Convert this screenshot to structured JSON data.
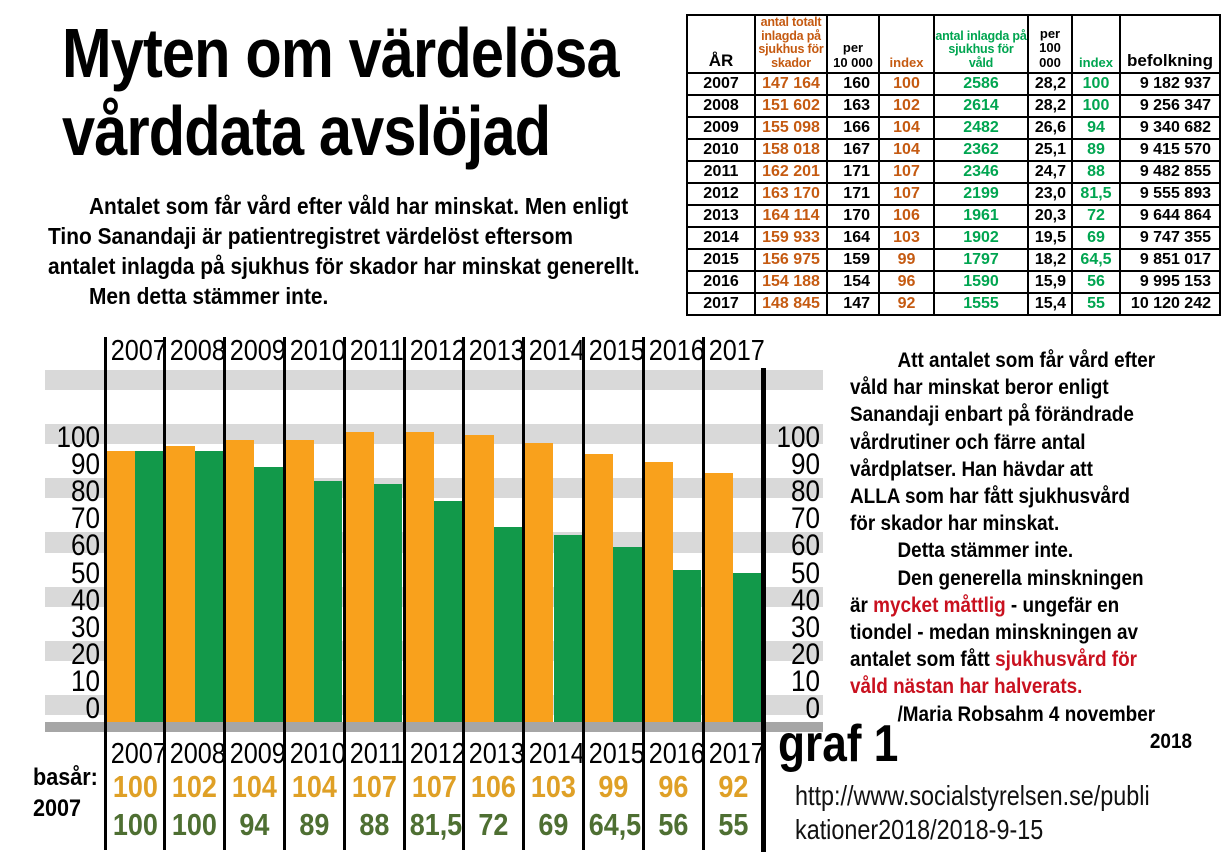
{
  "title": {
    "line1": "Myten om värdelösa",
    "line2": "vårddata avslöjad"
  },
  "intro": {
    "lines": [
      {
        "text": "Antalet som får vård efter våld har minskat. Men enligt",
        "indent": true
      },
      {
        "text": "Tino Sanandaji är patientregistret värdelöst eftersom",
        "indent": false
      },
      {
        "text": "antalet inlagda på sjukhus för skador har minskat generellt.",
        "indent": false
      },
      {
        "text": "Men detta stämmer inte.",
        "indent": true
      }
    ]
  },
  "table": {
    "headers": [
      {
        "label": "ÅR",
        "color": "#000000",
        "size": "big"
      },
      {
        "label": "antal totalt\ninlagda på\nsjukhus för\nskador",
        "color": "#C55A11",
        "size": "small"
      },
      {
        "label": "per\n10 000",
        "color": "#000000",
        "size": "mid"
      },
      {
        "label": "index",
        "color": "#C55A11",
        "size": "mid"
      },
      {
        "label": "antal inlagda på\nsjukhus för våld",
        "color": "#00A550",
        "size": "small"
      },
      {
        "label": "per\n100 000",
        "color": "#000000",
        "size": "mid"
      },
      {
        "label": "index",
        "color": "#00A550",
        "size": "mid"
      },
      {
        "label": "befolkning",
        "color": "#000000",
        "size": "big"
      }
    ],
    "rows": [
      [
        "2007",
        "147 164",
        "160",
        "100",
        "2586",
        "28,2",
        "100",
        "9 182 937"
      ],
      [
        "2008",
        "151 602",
        "163",
        "102",
        "2614",
        "28,2",
        "100",
        "9 256 347"
      ],
      [
        "2009",
        "155 098",
        "166",
        "104",
        "2482",
        "26,6",
        "94",
        "9 340 682"
      ],
      [
        "2010",
        "158 018",
        "167",
        "104",
        "2362",
        "25,1",
        "89",
        "9 415 570"
      ],
      [
        "2011",
        "162 201",
        "171",
        "107",
        "2346",
        "24,7",
        "88",
        "9 482 855"
      ],
      [
        "2012",
        "163 170",
        "171",
        "107",
        "2199",
        "23,0",
        "81,5",
        "9 555 893"
      ],
      [
        "2013",
        "164 114",
        "170",
        "106",
        "1961",
        "20,3",
        "72",
        "9 644 864"
      ],
      [
        "2014",
        "159 933",
        "164",
        "103",
        "1902",
        "19,5",
        "69",
        "9 747 355"
      ],
      [
        "2015",
        "156 975",
        "159",
        "99",
        "1797",
        "18,2",
        "64,5",
        "9 851 017"
      ],
      [
        "2016",
        "154 188",
        "154",
        "96",
        "1590",
        "15,9",
        "56",
        "9 995 153"
      ],
      [
        "2017",
        "148 845",
        "147",
        "92",
        "1555",
        "15,4",
        "55",
        "10 120 242"
      ]
    ]
  },
  "chart_data": {
    "type": "bar",
    "categories": [
      "2007",
      "2008",
      "2009",
      "2010",
      "2011",
      "2012",
      "2013",
      "2014",
      "2015",
      "2016",
      "2017"
    ],
    "series": [
      {
        "name": "orange – index, antal totalt inlagda på sjukhus för skador",
        "color": "#F9A11C",
        "values": [
          100,
          102,
          104,
          104,
          107,
          107,
          106,
          103,
          99,
          96,
          92
        ],
        "labels": [
          "100",
          "102",
          "104",
          "104",
          "107",
          "107",
          "106",
          "103",
          "99",
          "96",
          "92"
        ]
      },
      {
        "name": "grön – index, antal inlagda på sjukhus för våld",
        "color": "#12994A",
        "values": [
          100,
          100,
          94,
          89,
          88,
          81.5,
          72,
          69,
          64.5,
          56,
          55
        ],
        "labels": [
          "100",
          "100",
          "94",
          "89",
          "88",
          "81,5",
          "72",
          "69",
          "64,5",
          "56",
          "55"
        ]
      }
    ],
    "ylim": [
      0,
      130
    ],
    "yticks": [
      0,
      10,
      20,
      30,
      40,
      50,
      60,
      70,
      80,
      90,
      100
    ],
    "yticks_sides": "both",
    "grid": "gray horizontal bands every 20 units",
    "base_year": {
      "label": "basår:",
      "year": "2007"
    }
  },
  "right_text": {
    "lines": [
      {
        "indent": true,
        "segs": [
          {
            "t": "Att antalet som får vård efter"
          }
        ]
      },
      {
        "segs": [
          {
            "t": "våld har minskat beror enligt"
          }
        ]
      },
      {
        "segs": [
          {
            "t": "Sanandaji enbart på förändrade"
          }
        ]
      },
      {
        "segs": [
          {
            "t": "vårdrutiner och färre antal"
          }
        ]
      },
      {
        "segs": [
          {
            "t": "vårdplatser. Han hävdar att"
          }
        ]
      },
      {
        "segs": [
          {
            "t": "ALLA som har fått sjukhusvård"
          }
        ]
      },
      {
        "segs": [
          {
            "t": "för skador har minskat."
          }
        ]
      },
      {
        "indent": true,
        "segs": [
          {
            "t": "Detta stämmer inte."
          }
        ]
      },
      {
        "indent": true,
        "segs": [
          {
            "t": "Den generella minskningen"
          }
        ]
      },
      {
        "segs": [
          {
            "t": "är "
          },
          {
            "t": "mycket måttlig",
            "red": true
          },
          {
            "t": " - ungefär en"
          }
        ]
      },
      {
        "segs": [
          {
            "t": "tiondel - medan minskningen av"
          }
        ]
      },
      {
        "segs": [
          {
            "t": "antalet som fått "
          },
          {
            "t": "sjukhusvård för",
            "red": true
          }
        ]
      },
      {
        "segs": [
          {
            "t": "våld nästan har halverats.",
            "red": true
          }
        ]
      },
      {
        "indent": true,
        "segs": [
          {
            "t": "/Maria Robsahm 4 november"
          }
        ]
      },
      {
        "right": true,
        "segs": [
          {
            "t": "2018"
          }
        ]
      }
    ]
  },
  "graf_label": "graf 1",
  "source": {
    "url": "http://www.socialstyrelsen.se/publikationer2018/2018-9-15",
    "lines": [
      "http://www.socialstyrelsen.se/publi",
      "kationer2018/2018-9-15"
    ]
  },
  "colors": {
    "bar_orange": "#F9A11C",
    "bar_green": "#12994A",
    "stripe_gray": "#D9D9D9",
    "baseline_gray": "#A6A6A6",
    "table_orange": "#C55A11",
    "table_green": "#00A550",
    "red_text": "#C9111F",
    "index_row_orange": "#DFA026",
    "index_row_green": "#4E6F32"
  }
}
